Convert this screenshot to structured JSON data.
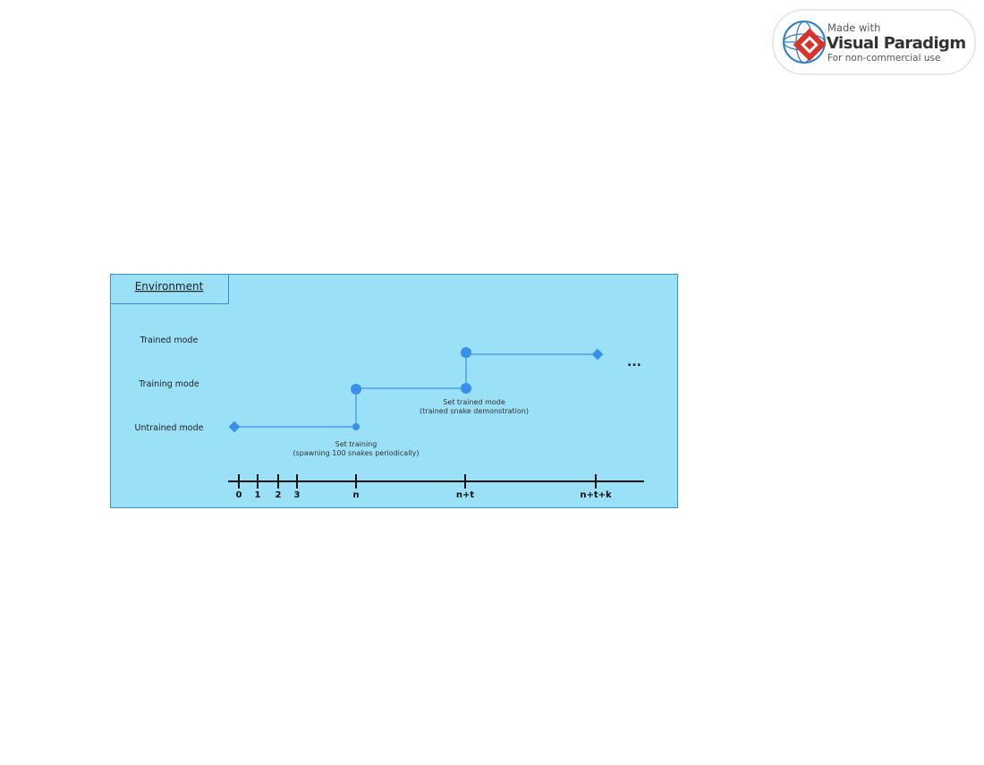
{
  "watermark": {
    "line1": "Made with",
    "line2": "Visual Paradigm",
    "line3": "For non-commercial use"
  },
  "frame": {
    "title": "Environment",
    "fill_color": "#9ae1f8",
    "border_color": "#3a8fcf"
  },
  "states": {
    "trained": "Trained mode",
    "training": "Training mode",
    "untrained": "Untrained mode"
  },
  "events": {
    "set_training_title": "Set training",
    "set_training_detail": "(spawning 100 snakes periodically)",
    "set_trained_title": "Set trained mode",
    "set_trained_detail": "(trained snake demonstration)"
  },
  "continuation": "...",
  "timeline": {
    "ticks": [
      "0",
      "1",
      "2",
      "3",
      "n",
      "n+t",
      "n+t+k"
    ]
  },
  "colors": {
    "line": "#3a8fe8",
    "axis": "#111111",
    "text": "#222222",
    "watermark_red": "#d9342b",
    "watermark_blue": "#2f7fc1"
  }
}
